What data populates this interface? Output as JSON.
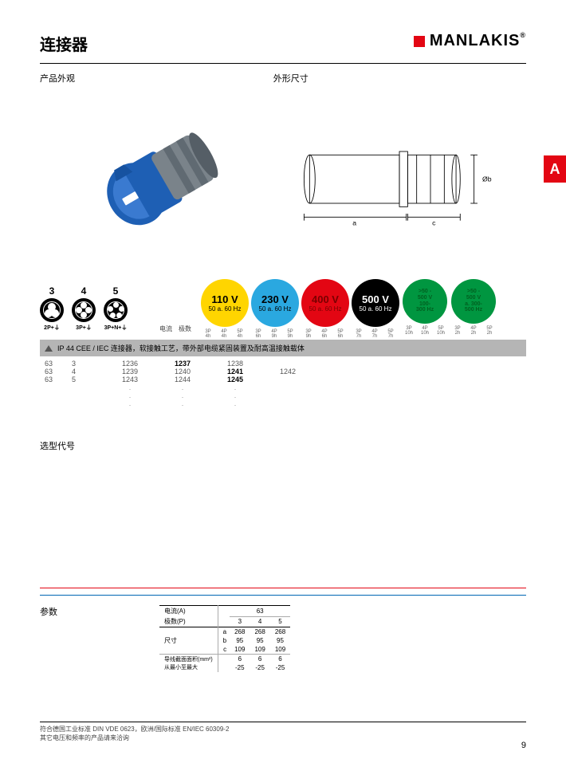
{
  "header": {
    "title": "连接器",
    "brand": "MANLAKIS",
    "reg": "®"
  },
  "sideTab": "A",
  "sections": {
    "appearance": "产品外观",
    "dimensions": "外形尺寸",
    "selection": "选型代号",
    "params": "参数"
  },
  "dimLabels": {
    "a": "a",
    "c": "c",
    "ob": "Øb"
  },
  "pins": [
    {
      "n": "3",
      "sub": "2P+⏚"
    },
    {
      "n": "4",
      "sub": "3P+⏚"
    },
    {
      "n": "5",
      "sub": "3P+N+⏚"
    }
  ],
  "tableHead": {
    "current": "电流",
    "poles": "极数"
  },
  "voltGroups": [
    {
      "v": "110 V",
      "hz": "50 a. 60 Hz",
      "bg": "#ffd500",
      "fg": "#000000",
      "sub": [
        [
          "3P",
          "4h"
        ],
        [
          "4P",
          "4h"
        ],
        [
          "5P",
          "4h"
        ]
      ]
    },
    {
      "v": "230 V",
      "hz": "50 a. 60 Hz",
      "bg": "#2aa8e0",
      "fg": "#000000",
      "sub": [
        [
          "3P",
          "6h"
        ],
        [
          "4P",
          "9h"
        ],
        [
          "5P",
          "9h"
        ]
      ]
    },
    {
      "v": "400 V",
      "hz": "50 a. 60 Hz",
      "bg": "#e30613",
      "fg": "#7a0000",
      "sub": [
        [
          "3P",
          "9h"
        ],
        [
          "4P",
          "6h"
        ],
        [
          "5P",
          "6h"
        ]
      ]
    },
    {
      "v": "500 V",
      "hz": "50 a. 60 Hz",
      "bg": "#000000",
      "fg": "#ffffff",
      "sub": [
        [
          "3P",
          "7h"
        ],
        [
          "4P",
          "7h"
        ],
        [
          "5P",
          "7h"
        ]
      ]
    },
    {
      "v": ">50 -\n500 V",
      "hz": "100-\n300 Hz",
      "bg": "#009640",
      "fg": "#006020",
      "sub": [
        [
          "3P",
          "10h"
        ],
        [
          "4P",
          "10h"
        ],
        [
          "5P",
          "10h"
        ]
      ],
      "small": true
    },
    {
      "v": ">50 -\n500 V",
      "hz": "a. 300-\n500 Hz",
      "bg": "#009640",
      "fg": "#006020",
      "sub": [
        [
          "3P",
          "2h"
        ],
        [
          "4P",
          "2h"
        ],
        [
          "5P",
          "2h"
        ]
      ],
      "small": true
    }
  ],
  "banner": "IP 44 CEE / IEC 连接器，软接触工艺，带外部电缆紧固装置及耐高温接触载体",
  "selectRows": [
    {
      "a": "63",
      "p": "3",
      "cells": [
        "1236",
        "1237",
        "1238",
        "",
        "",
        ""
      ]
    },
    {
      "a": "63",
      "p": "4",
      "cells": [
        "1239",
        "1240",
        "1241",
        "1242",
        "",
        ""
      ]
    },
    {
      "a": "63",
      "p": "5",
      "cells": [
        "1243",
        "1244",
        "1245",
        "",
        "",
        ""
      ]
    },
    {
      "a": "",
      "p": "",
      "cells": [
        ".",
        ".",
        ".",
        "",
        "",
        ""
      ]
    },
    {
      "a": "",
      "p": "",
      "cells": [
        ".",
        ".",
        ".",
        "",
        "",
        ""
      ]
    },
    {
      "a": "",
      "p": "",
      "cells": [
        ".",
        ".",
        ".",
        "",
        "",
        ""
      ]
    }
  ],
  "boldCells": [
    "1237",
    "1241",
    "1245"
  ],
  "paramsTable": {
    "hCurrent": "电流(A)",
    "hPoles": "极数(P)",
    "currentVal": "63",
    "poleCols": [
      "3",
      "4",
      "5"
    ],
    "dimLabel": "尺寸",
    "rows": [
      {
        "k": "a",
        "v": [
          "268",
          "268",
          "268"
        ]
      },
      {
        "k": "b",
        "v": [
          "95",
          "95",
          "95"
        ]
      },
      {
        "k": "c",
        "v": [
          "109",
          "109",
          "109"
        ]
      }
    ],
    "cross": "导线截面面积(mm²)\n从最小至最大",
    "crossRows": [
      [
        "6",
        "6",
        "6"
      ],
      [
        "-25",
        "-25",
        "-25"
      ]
    ]
  },
  "footer": {
    "l1": "符合德国工业标准 DIN VDE 0623，欧洲/国际标准 EN/IEC 60309-2",
    "l2": "其它电压和频率的产品请来洽询"
  },
  "pageNo": "9",
  "colors": {
    "red": "#e30613",
    "blue": "#0066b3",
    "plugBlue": "#1e5fb4",
    "plugGrey": "#7a838a"
  }
}
